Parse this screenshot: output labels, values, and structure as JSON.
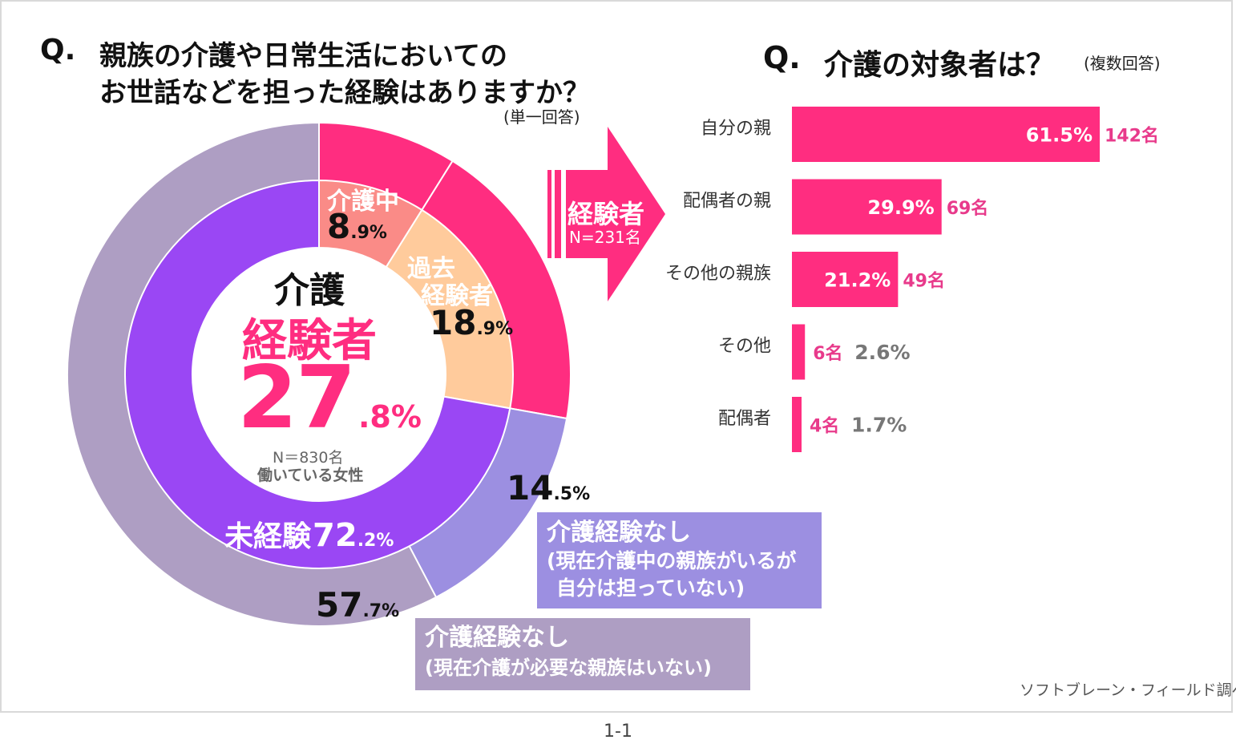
{
  "left": {
    "q_mark": "Q.",
    "title_line1": "親族の介護や日常生活においての",
    "title_line2": "お世話などを担った経験はありますか？",
    "answer_type": "(単一回答)",
    "center": {
      "label1": "介護",
      "label2": "経験者",
      "value_int": "27",
      "value_dec": ".8%",
      "n": "N＝830名",
      "population": "働いている女性"
    },
    "inner_labels": {
      "caring_now": "介護中",
      "caring_now_int": "8",
      "caring_now_dec": ".9%",
      "past_1": "過去",
      "past_2": "経験者",
      "past_int": "18",
      "past_dec": ".9%",
      "none_label": "未経験",
      "none_int": "72",
      "none_dec": ".2%"
    },
    "outer_labels": {
      "a_int": "14",
      "a_dec": ".5%",
      "b_int": "57",
      "b_dec": ".7%"
    },
    "callout_a": {
      "line1": "介護経験なし",
      "line2": "(現在介護中の親族がいるが",
      "line3": "自分は担っていない)"
    },
    "callout_b": {
      "line1": "介護経験なし",
      "line2": "(現在介護が必要な親族はいない)"
    }
  },
  "arrow": {
    "label": "経験者",
    "n": "N=231名"
  },
  "right": {
    "q_mark": "Q.",
    "title": "介護の対象者は？",
    "answer_type": "(複数回答)"
  },
  "source": "ソフトブレーン・フィールド調べ",
  "page_number": "1-1",
  "colors": {
    "pink": "#ff2d80",
    "salmon": "#fa8b87",
    "peach": "#ffcb9c",
    "purple": "#9a47f4",
    "lavender": "#9c8fe1",
    "grey_purple": "#ae9ec3",
    "pink_text": "#e83a8b",
    "grey_text": "#777777"
  },
  "chart_data": [
    {
      "type": "pie",
      "title": "",
      "inner_ring": [
        {
          "name": "介護中",
          "value": 8.9
        },
        {
          "name": "過去経験者",
          "value": 18.9
        },
        {
          "name": "未経験",
          "value": 72.2
        }
      ],
      "outer_ring": [
        {
          "name": "介護中",
          "value": 8.9
        },
        {
          "name": "過去経験者",
          "value": 18.9
        },
        {
          "name": "介護経験なし(現在介護中の親族がいるが自分は担っていない)",
          "value": 14.5
        },
        {
          "name": "介護経験なし(現在介護が必要な親族はいない)",
          "value": 57.7
        }
      ]
    },
    {
      "type": "bar",
      "orientation": "horizontal",
      "categories": [
        "自分の親",
        "配偶者の親",
        "その他の親族",
        "その他",
        "配偶者"
      ],
      "values": [
        61.5,
        29.9,
        21.2,
        2.6,
        1.7
      ],
      "pct_labels": [
        "61.5%",
        "29.9%",
        "21.2%",
        "2.6%",
        "1.7%"
      ],
      "count_labels": [
        "142名",
        "69名",
        "49名",
        "6名",
        "4名"
      ]
    }
  ]
}
